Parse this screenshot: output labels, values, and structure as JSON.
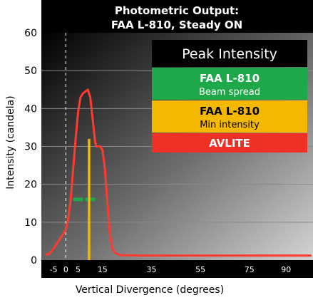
{
  "chart_data": {
    "type": "line",
    "title_line1": "Photometric Output:",
    "title_line2": "FAA L-810, Steady ON",
    "xlabel": "Vertical Divergence (degrees)",
    "ylabel": "Intensity (candela)",
    "xlim": [
      -10,
      101
    ],
    "ylim": [
      0,
      60
    ],
    "x_ticks": [
      -5,
      0,
      5,
      15,
      35,
      55,
      75,
      90
    ],
    "y_ticks": [
      0,
      10,
      20,
      30,
      40,
      50,
      60
    ],
    "zero_line_x": 0,
    "series": [
      {
        "name": "AVLITE",
        "color": "#ff3b30",
        "x": [
          -8,
          -7,
          -5,
          -3,
          -1,
          0,
          1,
          2,
          3,
          4,
          5,
          6,
          7,
          8,
          9,
          10,
          11,
          12,
          12.5,
          13,
          14,
          15,
          16,
          17,
          18,
          19,
          20,
          22,
          25,
          30,
          40,
          60,
          80,
          100
        ],
        "y": [
          1.5,
          1.5,
          3,
          5,
          7,
          8,
          11,
          16,
          24,
          32,
          39,
          43,
          44,
          44.5,
          45,
          43,
          37,
          31,
          30,
          30,
          30,
          29,
          24,
          15,
          7,
          3,
          2,
          1.3,
          1.3,
          1.2,
          1.2,
          1.2,
          1.2,
          1.2
        ]
      }
    ],
    "reference_marks": [
      {
        "name": "FAA L-810 Beam spread",
        "type": "horizontal",
        "color": "#1ea84a",
        "y": 16,
        "x_start": 3,
        "x_end": 13
      },
      {
        "name": "FAA L-810 Min intensity",
        "type": "vertical",
        "color": "#f5b800",
        "x": 9.5,
        "y_start": 0,
        "y_end": 32
      }
    ],
    "legend": {
      "placement": "top-right",
      "title": "Peak Intensity",
      "items": [
        {
          "line1": "FAA L-810",
          "line2": "Beam spread",
          "color": "#1ea84a",
          "text_color": "#ffffff"
        },
        {
          "line1": "FAA L-810",
          "line2": "Min intensity",
          "color": "#f5b800",
          "text_color": "#000000"
        },
        {
          "line1": "AVLITE",
          "line2": "",
          "color": "#ee3124",
          "text_color": "#ffffff"
        }
      ]
    }
  }
}
